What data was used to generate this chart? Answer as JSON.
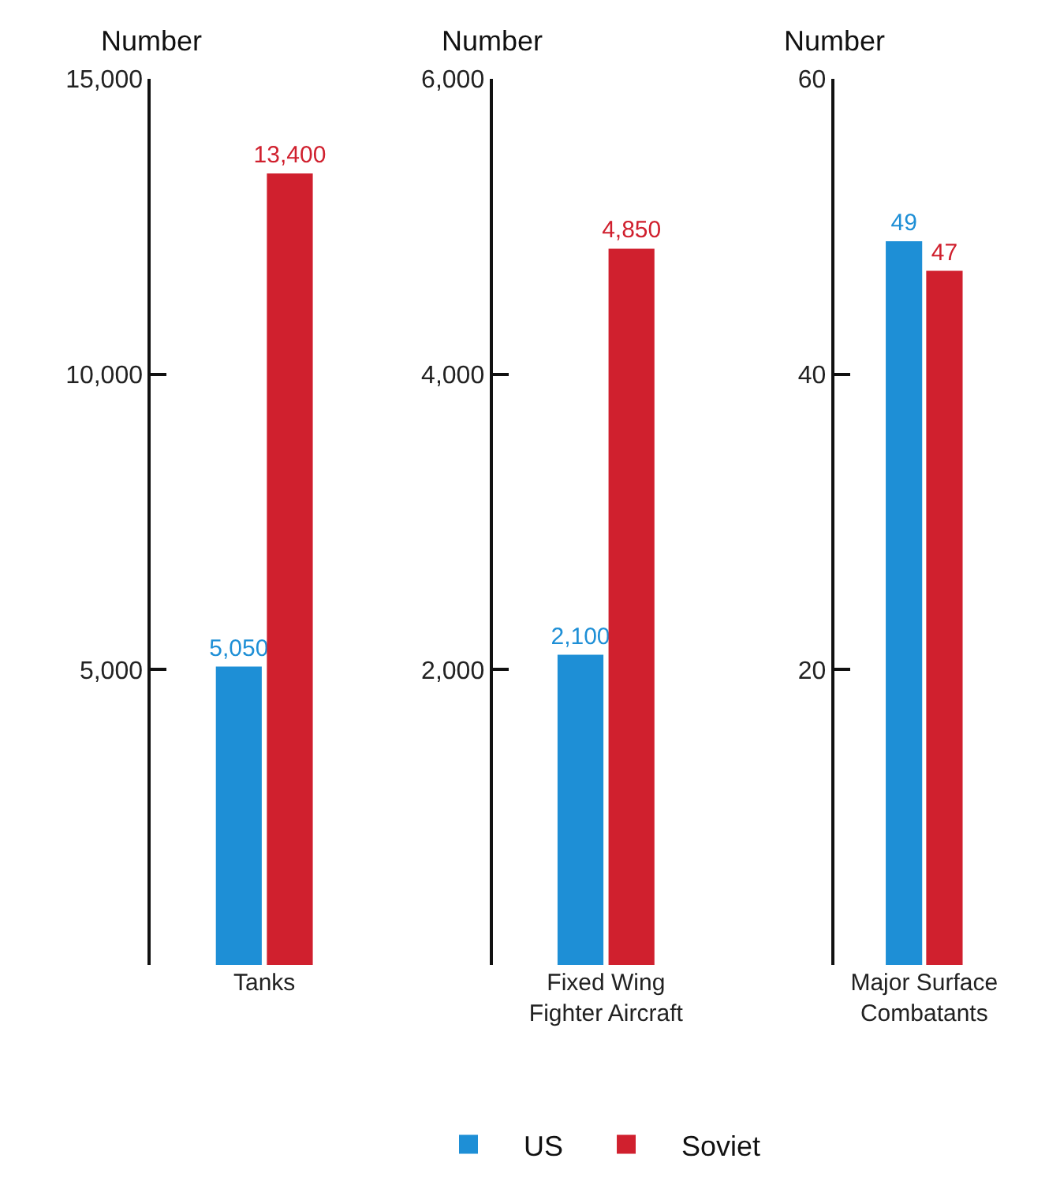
{
  "chart_data": [
    {
      "type": "bar",
      "ylabel": "Number",
      "categories": [
        "Tanks"
      ],
      "ylim": [
        0,
        15000
      ],
      "yticks": [
        {
          "value": 5000,
          "label": "5,000"
        },
        {
          "value": 10000,
          "label": "10,000"
        },
        {
          "value": 15000,
          "label": "15,000"
        }
      ],
      "grid": false,
      "legend": "bottom",
      "series": [
        {
          "name": "US",
          "color": "#1e8fd6",
          "values": [
            5050
          ],
          "value_labels": [
            "5,050"
          ]
        },
        {
          "name": "Soviet",
          "color": "#d0202e",
          "values": [
            13400
          ],
          "value_labels": [
            "13,400"
          ]
        }
      ]
    },
    {
      "type": "bar",
      "ylabel": "Number",
      "categories": [
        "Fixed Wing\nFighter Aircraft"
      ],
      "ylim": [
        0,
        6000
      ],
      "yticks": [
        {
          "value": 2000,
          "label": "2,000"
        },
        {
          "value": 4000,
          "label": "4,000"
        },
        {
          "value": 6000,
          "label": "6,000"
        }
      ],
      "grid": false,
      "series": [
        {
          "color": "#1e8fd6",
          "values": [
            2100
          ],
          "value_labels": [
            "2,100"
          ]
        },
        {
          "color": "#d0202e",
          "values": [
            4850
          ],
          "value_labels": [
            "4,850"
          ]
        }
      ]
    },
    {
      "type": "bar",
      "ylabel": "Number",
      "categories": [
        "Major Surface\nCombatants"
      ],
      "ylim": [
        0,
        60
      ],
      "yticks": [
        20,
        40,
        60
      ],
      "grid": false,
      "series": [
        {
          "color": "#1e8fd6",
          "values": [
            49
          ],
          "value_labels": [
            "49"
          ]
        },
        {
          "color": "#d0202e",
          "values": [
            47
          ],
          "value_labels": [
            "47"
          ]
        }
      ]
    }
  ]
}
